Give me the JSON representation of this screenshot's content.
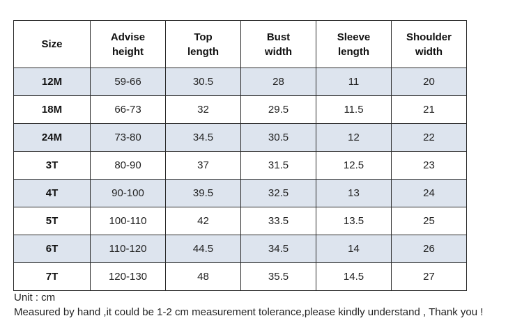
{
  "table": {
    "headers": [
      [
        "Size"
      ],
      [
        "Advise",
        "height"
      ],
      [
        "Top",
        "length"
      ],
      [
        "Bust",
        "width"
      ],
      [
        "Sleeve",
        "length"
      ],
      [
        "Shoulder",
        "width"
      ]
    ],
    "rows": [
      [
        "12M",
        "59-66",
        "30.5",
        "28",
        "11",
        "20"
      ],
      [
        "18M",
        "66-73",
        "32",
        "29.5",
        "11.5",
        "21"
      ],
      [
        "24M",
        "73-80",
        "34.5",
        "30.5",
        "12",
        "22"
      ],
      [
        "3T",
        "80-90",
        "37",
        "31.5",
        "12.5",
        "23"
      ],
      [
        "4T",
        "90-100",
        "39.5",
        "32.5",
        "13",
        "24"
      ],
      [
        "5T",
        "100-110",
        "42",
        "33.5",
        "13.5",
        "25"
      ],
      [
        "6T",
        "110-120",
        "44.5",
        "34.5",
        "14",
        "26"
      ],
      [
        "7T",
        "120-130",
        "48",
        "35.5",
        "14.5",
        "27"
      ]
    ],
    "shaded_row_color": "#dde4ee",
    "border_color": "#2a2a2a"
  },
  "notes": {
    "unit": "Unit : cm",
    "tolerance": "Measured by hand ,it could be 1-2 cm measurement tolerance,please kindly understand , Thank you !"
  }
}
